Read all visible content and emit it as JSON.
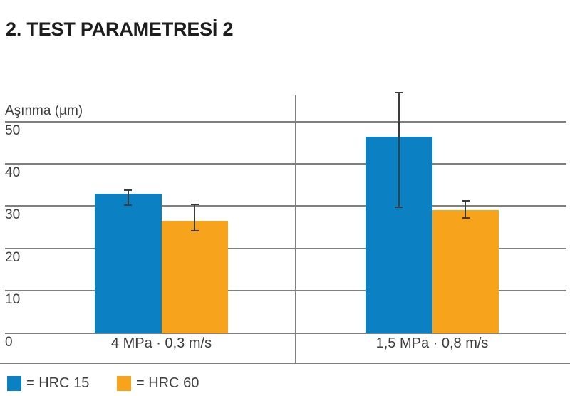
{
  "title": "2. TEST PARAMETRESİ 2",
  "colors": {
    "series_blue": "#0b80c2",
    "series_orange": "#f7a41c",
    "grid": "#7f7f7f",
    "error_bar": "#3c3c3c",
    "text": "#3c3c3c",
    "title_text": "#1d1d1d"
  },
  "chart_data": {
    "type": "bar",
    "title": "2. TEST PARAMETRESİ 2",
    "xlabel": "",
    "ylabel": "Aşınma (µm)",
    "ylim": [
      0,
      50
    ],
    "yticks": [
      0,
      10,
      20,
      30,
      40,
      50
    ],
    "grid": "horizontal gridlines on, vertical divider between category groups",
    "legend_position": "bottom-left below chart",
    "categories": [
      "4 MPa · 0,3 m/s",
      "1,5 MPa · 0,8 m/s"
    ],
    "series": [
      {
        "name": "HRC 15",
        "color": "#0b80c2",
        "values": [
          33,
          46.5
        ],
        "error_low": [
          30,
          29.5
        ],
        "error_high": [
          34,
          57
        ]
      },
      {
        "name": "HRC 60",
        "color": "#f7a41c",
        "values": [
          26.5,
          29
        ],
        "error_low": [
          24,
          27
        ],
        "error_high": [
          30.5,
          31.5
        ]
      }
    ]
  },
  "legend": {
    "items": [
      {
        "label": "= HRC 15",
        "color": "#0b80c2"
      },
      {
        "label": "= HRC 60",
        "color": "#f7a41c"
      }
    ]
  }
}
